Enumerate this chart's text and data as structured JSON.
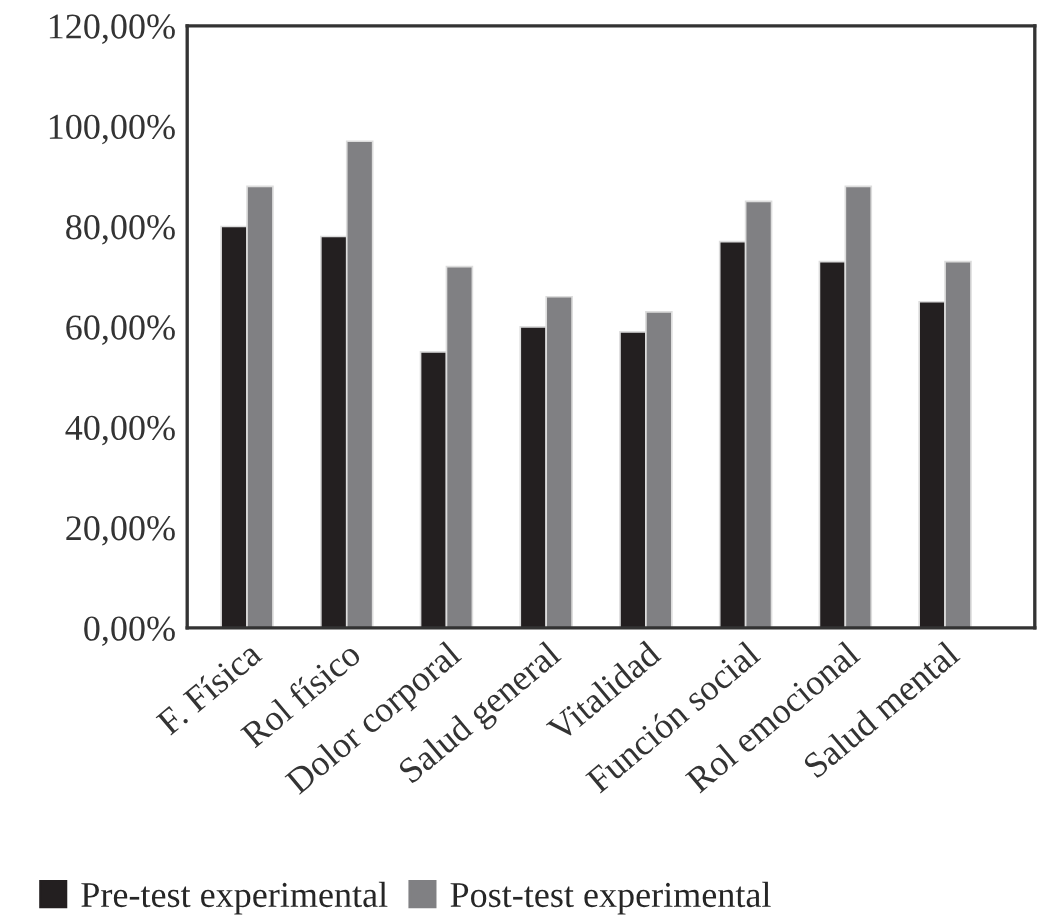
{
  "chart_data": {
    "type": "bar",
    "categories": [
      "F. Física",
      "Rol físico",
      "Dolor corporal",
      "Salud general",
      "Vitalidad",
      "Función social",
      "Rol emocional",
      "Salud mental"
    ],
    "series": [
      {
        "name": "Pre-test experimental",
        "color": "#231f20",
        "values": [
          80,
          78,
          55,
          60,
          59,
          77,
          73,
          65
        ]
      },
      {
        "name": "Post-test experimental",
        "color": "#808083",
        "values": [
          88,
          97,
          72,
          66,
          63,
          85,
          88,
          73
        ]
      }
    ],
    "ylim": [
      0,
      120
    ],
    "yticks": [
      {
        "value": 0,
        "label": "0,00%"
      },
      {
        "value": 20,
        "label": "20,00%"
      },
      {
        "value": 40,
        "label": "40,00%"
      },
      {
        "value": 60,
        "label": "60,00%"
      },
      {
        "value": 80,
        "label": "80,00%"
      },
      {
        "value": 100,
        "label": "100,00%"
      },
      {
        "value": 120,
        "label": "120,00%"
      }
    ],
    "grid": false,
    "legend": "bottom left"
  }
}
